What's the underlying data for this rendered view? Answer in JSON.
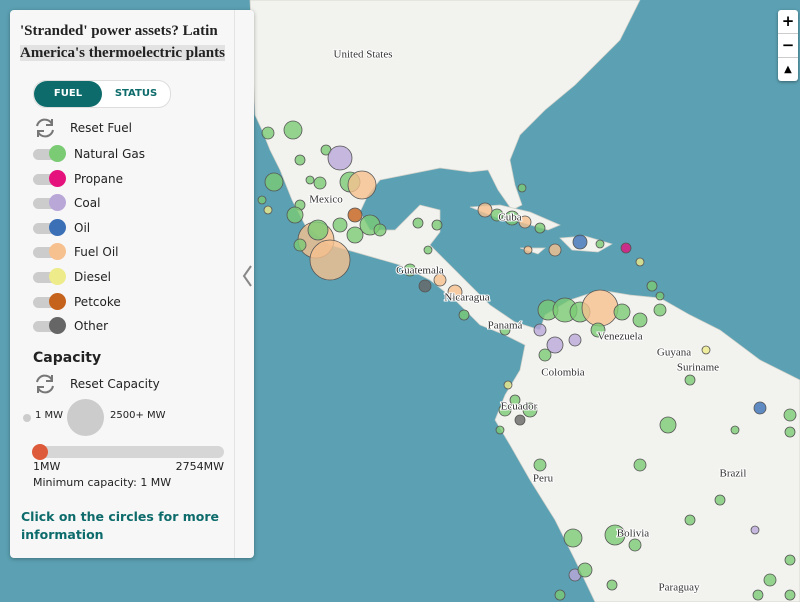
{
  "panel": {
    "title_lines": [
      "'Stranded' power assets? Latin",
      "America's thermoelectric plants"
    ],
    "tabs": [
      "FUEL",
      "STATUS"
    ],
    "reset_fuel": "Reset Fuel",
    "fuels": [
      {
        "name": "Natural Gas",
        "color": "#7acb74"
      },
      {
        "name": "Propane",
        "color": "#e5127d"
      },
      {
        "name": "Coal",
        "color": "#b9a7d8"
      },
      {
        "name": "Oil",
        "color": "#3b6fb6"
      },
      {
        "name": "Fuel Oil",
        "color": "#f6c08f"
      },
      {
        "name": "Diesel",
        "color": "#eeeb8a"
      },
      {
        "name": "Petcoke",
        "color": "#c5621b"
      },
      {
        "name": "Other",
        "color": "#666666"
      }
    ],
    "capacity": {
      "heading": "Capacity",
      "reset": "Reset Capacity",
      "min_label": "1 MW",
      "max_label": "2500+ MW",
      "slider_min": "1MW",
      "slider_max": "2754MW",
      "minimum": "Minimum capacity: 1 MW"
    },
    "link": "Click on the circles for more information"
  },
  "map": {
    "labels": [
      "United States",
      "Mexico",
      "Cuba",
      "Guatemala",
      "Nicaragua",
      "Panamá",
      "Venezuela",
      "Guyana",
      "Suriname",
      "Colombia",
      "Ecuador",
      "Peru",
      "Brazil",
      "Bolivia",
      "Paraguay"
    ],
    "zoom": [
      "+",
      "−",
      "▲"
    ]
  }
}
